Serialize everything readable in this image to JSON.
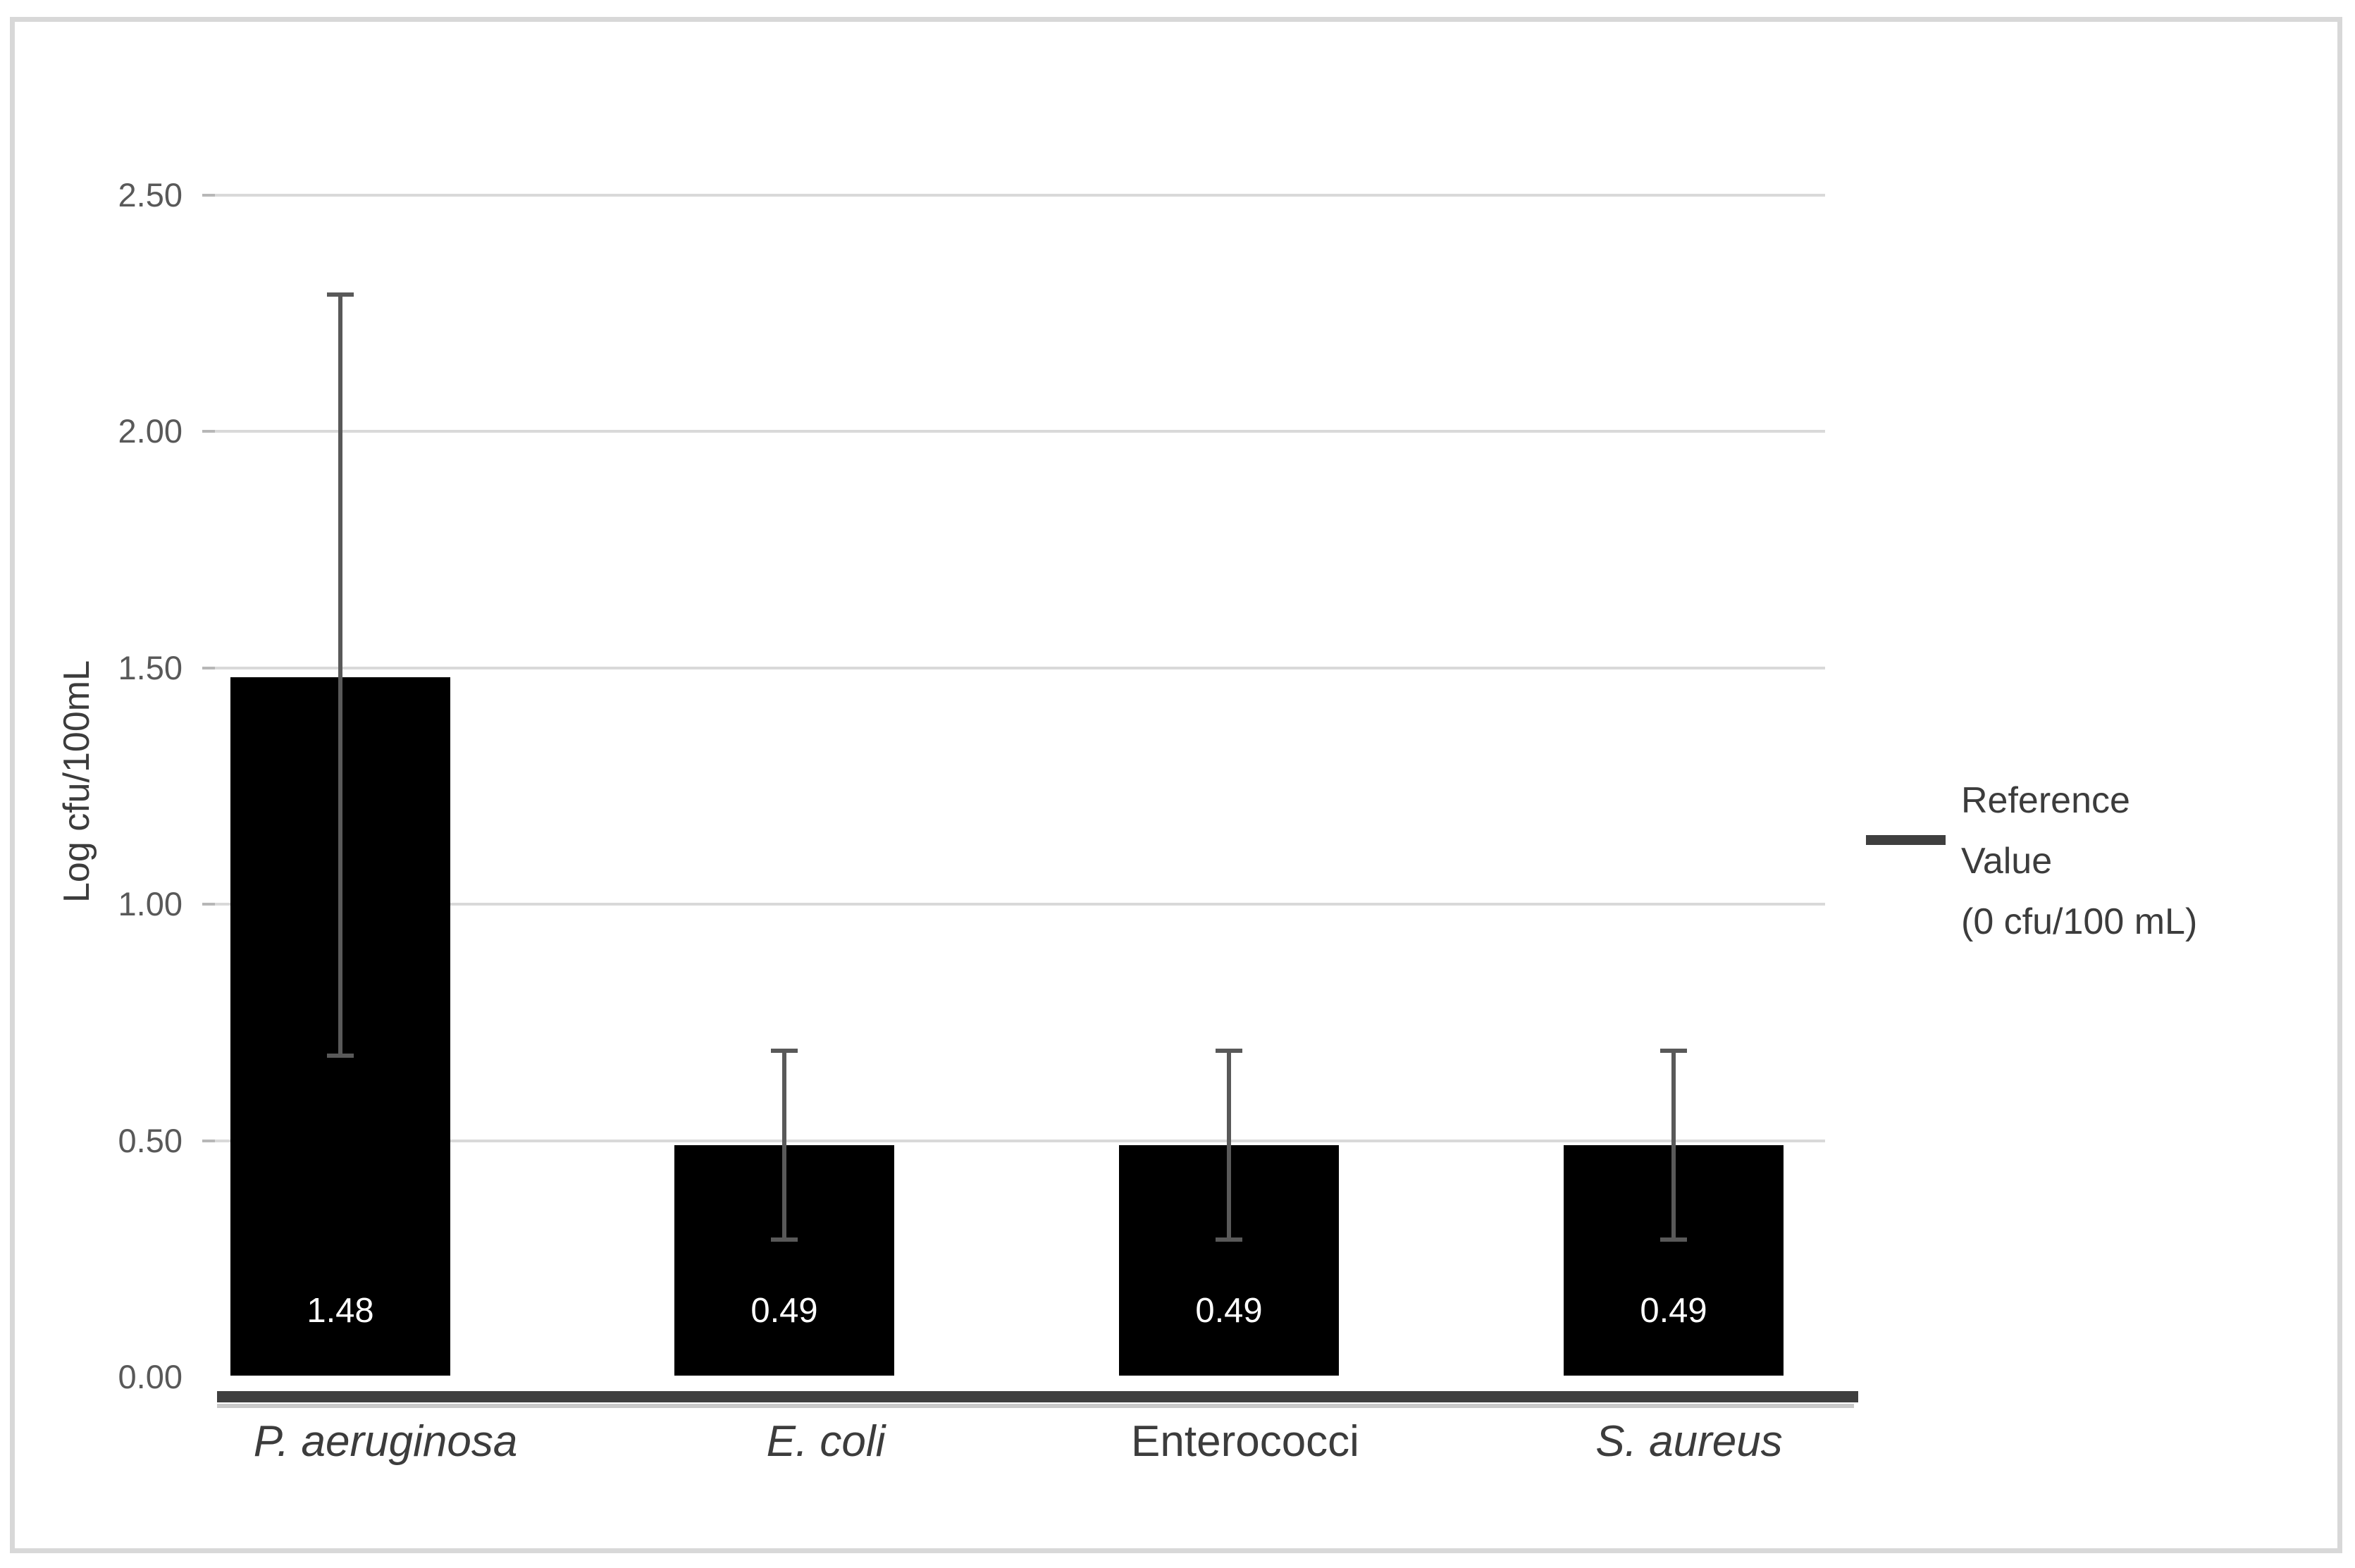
{
  "chart_data": {
    "type": "bar",
    "title": "",
    "xlabel": "",
    "ylabel": "Log cfu/100mL",
    "ylim": [
      0,
      2.5
    ],
    "grid": true,
    "yticks": [
      {
        "value": 0.0,
        "label": "0.00"
      },
      {
        "value": 0.5,
        "label": "0.50"
      },
      {
        "value": 1.0,
        "label": "1.00"
      },
      {
        "value": 1.5,
        "label": "1.50"
      },
      {
        "value": 2.0,
        "label": "2.00"
      },
      {
        "value": 2.5,
        "label": "2.50"
      }
    ],
    "categories": [
      {
        "label": "P. aeruginosa",
        "italic": true
      },
      {
        "label": "E. coli",
        "italic": true
      },
      {
        "label": "Enterococci",
        "italic": false
      },
      {
        "label": "S. aureus",
        "italic": true
      }
    ],
    "values": [
      1.48,
      0.49,
      0.49,
      0.49
    ],
    "data_labels": [
      "1.48",
      "0.49",
      "0.49",
      "0.49"
    ],
    "error_bars": [
      {
        "low": 0.68,
        "high": 2.29
      },
      {
        "low": 0.29,
        "high": 0.69
      },
      {
        "low": 0.29,
        "high": 0.69
      },
      {
        "low": 0.29,
        "high": 0.69
      }
    ],
    "bar_color": "#000000",
    "data_label_color": "#ffffff",
    "reference_line": {
      "value": 0,
      "color": "#3f3f3f"
    },
    "legend": {
      "position": "right",
      "marker": "line",
      "marker_color": "#3f3f3f",
      "lines": [
        "Reference",
        "Value",
        "(0 cfu/100 mL)"
      ],
      "label": "Reference Value (0 cfu/100 mL)"
    }
  },
  "colors": {
    "gridline": "#d9d9d9",
    "tick_text": "#595959",
    "axis_text": "#3c3c3c",
    "error_bar": "#595959",
    "frame_border": "#d8d8d8",
    "background": "#ffffff"
  }
}
